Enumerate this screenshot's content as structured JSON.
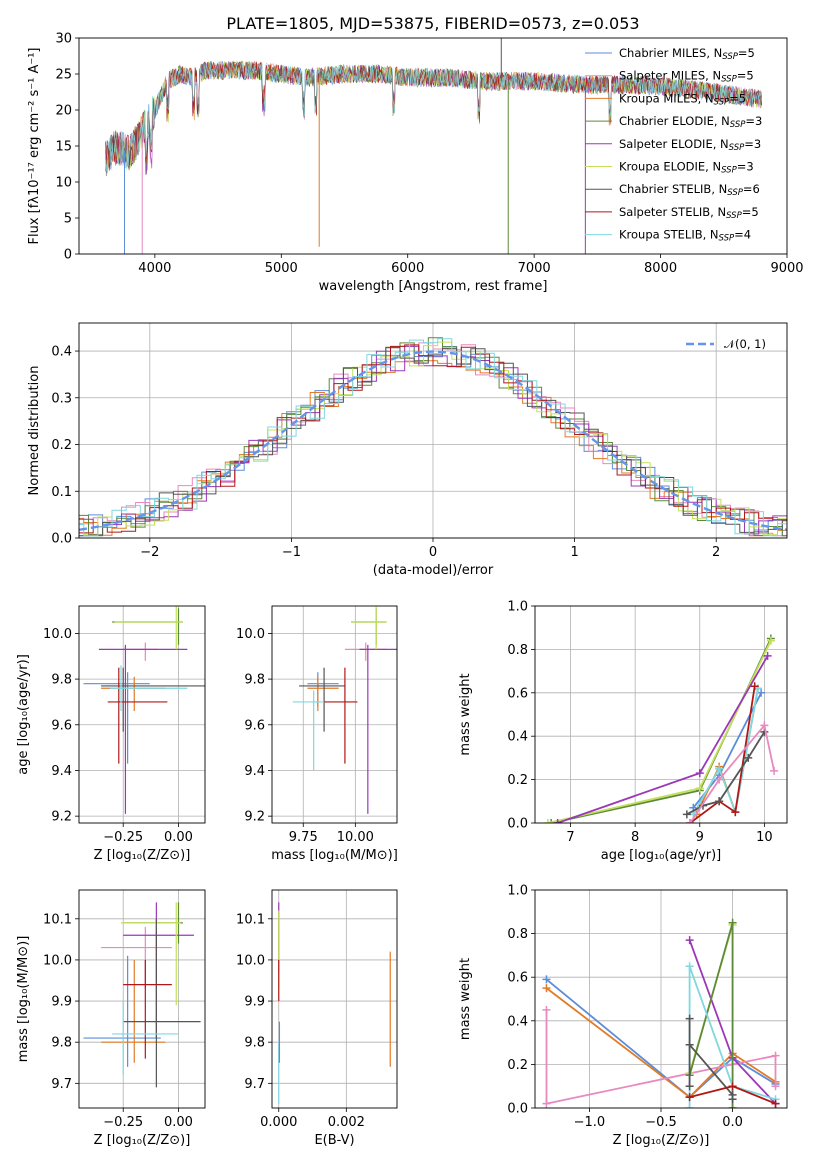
{
  "figure_title": "PLATE=1805, MJD=53875, FIBERID=0573, z=0.053",
  "colors": {
    "chabrier_miles": "#5b8ddb",
    "salpeter_miles": "#e889bf",
    "kroupa_miles": "#e07b28",
    "chabrier_elodie": "#5c8a3a",
    "salpeter_elodie": "#9a38b8",
    "kroupa_elodie": "#c4e05a",
    "chabrier_stelib": "#555555",
    "salpeter_stelib": "#b01818",
    "kroupa_stelib": "#7fd8e0",
    "gauss": "#6495ed"
  },
  "chart_data": [
    {
      "id": "spectrum",
      "type": "line",
      "title": "PLATE=1805, MJD=53875, FIBERID=0573, z=0.053",
      "xlabel": "wavelength [Angstrom, rest frame]",
      "ylabel": "Flux [f$_\\lambda$10$^{-17}$ erg cm$^{-2}$ s$^{-1}$ A$^{-1}$]",
      "xlim": [
        3400,
        9000
      ],
      "ylim": [
        0,
        30
      ],
      "xticks": [
        "4000",
        "5000",
        "6000",
        "7000",
        "8000",
        "9000"
      ],
      "yticks": [
        "0",
        "5",
        "10",
        "15",
        "20",
        "25",
        "30"
      ],
      "legend_position": "upper-right",
      "legend": [
        {
          "label": "Chabrier MILES, N",
          "sub": "SSP",
          "tail": "=5"
        },
        {
          "label": "Salpeter MILES, N",
          "sub": "SSP",
          "tail": "=5"
        },
        {
          "label": "Kroupa MILES, N",
          "sub": "SSP",
          "tail": "=5"
        },
        {
          "label": "Chabrier ELODIE, N",
          "sub": "SSP",
          "tail": "=3"
        },
        {
          "label": "Salpeter ELODIE, N",
          "sub": "SSP",
          "tail": "=3"
        },
        {
          "label": "Kroupa ELODIE, N",
          "sub": "SSP",
          "tail": "=3"
        },
        {
          "label": "Chabrier STELIB, N",
          "sub": "SSP",
          "tail": "=6"
        },
        {
          "label": "Salpeter STELIB, N",
          "sub": "SSP",
          "tail": "=5"
        },
        {
          "label": "Kroupa STELIB, N",
          "sub": "SSP",
          "tail": "=4"
        }
      ],
      "continuum": {
        "x": [
          3600,
          3700,
          3800,
          3900,
          4000,
          4100,
          4200,
          4300,
          4400,
          4600,
          4800,
          5000,
          5200,
          5500,
          5800,
          6000,
          6300,
          6600,
          7000,
          7400,
          7800,
          8200,
          8600,
          8800
        ],
        "y": [
          13,
          15,
          14,
          17,
          20,
          24,
          25,
          24.5,
          25.5,
          25.5,
          25.5,
          25,
          24.5,
          25,
          25,
          24.5,
          24.5,
          24,
          24,
          23.5,
          23.5,
          23,
          22,
          21.5
        ]
      }
    },
    {
      "id": "residuals",
      "type": "histogram",
      "xlabel": "(data-model)/error",
      "ylabel": "Normed distribution",
      "xlim": [
        -2.5,
        2.5
      ],
      "ylim": [
        0,
        0.46
      ],
      "xticks": [
        "−2",
        "−1",
        "0",
        "1",
        "2"
      ],
      "yticks": [
        "0.0",
        "0.1",
        "0.2",
        "0.3",
        "0.4"
      ],
      "legend": [
        "$\\mathcal{N}(0,1)$"
      ],
      "legend_position": "upper-right",
      "gauss_mu": 0,
      "gauss_sigma": 1
    },
    {
      "id": "age-vs-Z",
      "type": "errorbar",
      "xlabel": "Z [log$_{10}$($Z/Z_\\odot$)]",
      "ylabel": "age  [log$_{10}$($age/yr$)]",
      "xlim": [
        -0.45,
        0.12
      ],
      "ylim": [
        9.17,
        10.12
      ],
      "xticks": [
        -0.25,
        0.0
      ],
      "xtick_labels": [
        "−0.25",
        "0.00"
      ],
      "yticks": [
        9.2,
        9.4,
        9.6,
        9.8,
        10.0
      ],
      "ytick_labels": [
        "9.2",
        "9.4",
        "9.6",
        "9.8",
        "10.0"
      ],
      "points": [
        {
          "series": "chabrier_miles",
          "x": -0.23,
          "y": 9.78,
          "xerr": [
            0.2,
            0.1
          ],
          "yerr": [
            0.35,
            0.05
          ]
        },
        {
          "series": "salpeter_miles",
          "x": -0.15,
          "y": 9.93,
          "xerr": [
            0.1,
            0.06
          ],
          "yerr": [
            0.05,
            0.03
          ]
        },
        {
          "series": "kroupa_miles",
          "x": -0.2,
          "y": 9.76,
          "xerr": [
            0.15,
            0.14
          ],
          "yerr": [
            0.1,
            0.05
          ]
        },
        {
          "series": "chabrier_elodie",
          "x": 0.0,
          "y": 10.05,
          "xerr": [
            0.3,
            0.02
          ],
          "yerr": [
            0.1,
            0.06
          ]
        },
        {
          "series": "salpeter_elodie",
          "x": -0.24,
          "y": 9.93,
          "xerr": [
            0.12,
            0.28
          ],
          "yerr": [
            0.72,
            0.02
          ]
        },
        {
          "series": "kroupa_elodie",
          "x": -0.01,
          "y": 10.05,
          "xerr": [
            0.28,
            0.03
          ],
          "yerr": [
            0.12,
            0.07
          ]
        },
        {
          "series": "chabrier_stelib",
          "x": -0.25,
          "y": 9.77,
          "xerr": [
            0.1,
            0.38
          ],
          "yerr": [
            0.2,
            0.08
          ]
        },
        {
          "series": "salpeter_stelib",
          "x": -0.27,
          "y": 9.7,
          "xerr": [
            0.05,
            0.22
          ],
          "yerr": [
            0.27,
            0.15
          ]
        },
        {
          "series": "kroupa_stelib",
          "x": -0.26,
          "y": 9.76,
          "xerr": [
            0.05,
            0.3
          ],
          "yerr": [
            0.1,
            0.1
          ]
        }
      ]
    },
    {
      "id": "age-vs-mass",
      "type": "errorbar",
      "xlabel": "mass [log$_{10}$($M/M_\\odot$)]",
      "xlim": [
        9.6,
        10.2
      ],
      "ylim": [
        9.17,
        10.12
      ],
      "xticks": [
        9.75,
        10.0
      ],
      "xtick_labels": [
        "9.75",
        "10.00"
      ],
      "yticks": [
        9.2,
        9.4,
        9.6,
        9.8,
        10.0
      ],
      "ytick_labels": [
        "9.2",
        "9.4",
        "9.6",
        "9.8",
        "10.0"
      ],
      "points": [
        {
          "series": "chabrier_miles",
          "x": 9.82,
          "y": 9.78,
          "xerr": [
            0.05,
            0.1
          ],
          "yerr": [
            0.1,
            0.05
          ]
        },
        {
          "series": "salpeter_miles",
          "x": 10.05,
          "y": 9.93,
          "xerr": [
            0.1,
            0.1
          ],
          "yerr": [
            0.05,
            0.03
          ]
        },
        {
          "series": "kroupa_miles",
          "x": 9.82,
          "y": 9.76,
          "xerr": [
            0.05,
            0.1
          ],
          "yerr": [
            0.1,
            0.05
          ]
        },
        {
          "series": "chabrier_elodie",
          "x": 10.1,
          "y": 10.05,
          "xerr": [
            0.12,
            0.05
          ],
          "yerr": [
            0.1,
            0.06
          ]
        },
        {
          "series": "salpeter_elodie",
          "x": 10.06,
          "y": 9.93,
          "xerr": [
            0.04,
            0.15
          ],
          "yerr": [
            0.72,
            0.02
          ]
        },
        {
          "series": "kroupa_elodie",
          "x": 10.1,
          "y": 10.05,
          "xerr": [
            0.12,
            0.05
          ],
          "yerr": [
            0.12,
            0.07
          ]
        },
        {
          "series": "chabrier_stelib",
          "x": 9.85,
          "y": 9.77,
          "xerr": [
            0.12,
            0.1
          ],
          "yerr": [
            0.2,
            0.08
          ]
        },
        {
          "series": "salpeter_stelib",
          "x": 9.95,
          "y": 9.7,
          "xerr": [
            0.1,
            0.06
          ],
          "yerr": [
            0.27,
            0.15
          ]
        },
        {
          "series": "kroupa_stelib",
          "x": 9.8,
          "y": 9.7,
          "xerr": [
            0.1,
            0.05
          ],
          "yerr": [
            0.3,
            0.05
          ]
        }
      ]
    },
    {
      "id": "weight-vs-age",
      "type": "line",
      "xlabel": "age  [log$_{10}$($age/yr$)]",
      "ylabel": "mass weight",
      "xlim": [
        6.45,
        10.35
      ],
      "ylim": [
        0,
        1
      ],
      "xticks": [
        7,
        8,
        9,
        10
      ],
      "xtick_labels": [
        "7",
        "8",
        "9",
        "10"
      ],
      "yticks": [
        0,
        0.2,
        0.4,
        0.6,
        0.8,
        1.0
      ],
      "ytick_labels": [
        "0.0",
        "0.2",
        "0.4",
        "0.6",
        "0.8",
        "1.0"
      ],
      "series": [
        {
          "key": "chabrier_elodie",
          "x": [
            6.7,
            9.0,
            10.1
          ],
          "y": [
            0.0,
            0.15,
            0.85
          ]
        },
        {
          "key": "kroupa_elodie",
          "x": [
            6.65,
            9.0,
            10.1
          ],
          "y": [
            0.0,
            0.16,
            0.84
          ]
        },
        {
          "key": "salpeter_elodie",
          "x": [
            6.8,
            9.0,
            10.05
          ],
          "y": [
            0.0,
            0.23,
            0.77
          ]
        },
        {
          "key": "chabrier_miles",
          "x": [
            8.9,
            9.3,
            9.95
          ],
          "y": [
            0.07,
            0.22,
            0.6
          ]
        },
        {
          "key": "kroupa_miles",
          "x": [
            8.95,
            9.3,
            9.55,
            9.9
          ],
          "y": [
            0.04,
            0.26,
            0.05,
            0.62
          ]
        },
        {
          "key": "kroupa_stelib",
          "x": [
            8.9,
            9.3,
            9.55,
            9.9
          ],
          "y": [
            0.04,
            0.25,
            0.05,
            0.62
          ]
        },
        {
          "key": "salpeter_stelib",
          "x": [
            8.85,
            9.3,
            9.55,
            9.85
          ],
          "y": [
            0.0,
            0.1,
            0.05,
            0.63
          ]
        },
        {
          "key": "chabrier_stelib",
          "x": [
            8.8,
            9.05,
            9.3,
            9.75,
            10.0
          ],
          "y": [
            0.04,
            0.08,
            0.1,
            0.3,
            0.42
          ]
        },
        {
          "key": "salpeter_miles",
          "x": [
            8.85,
            9.3,
            10.0,
            10.15
          ],
          "y": [
            0.0,
            0.2,
            0.45,
            0.24
          ]
        }
      ]
    },
    {
      "id": "mass-vs-Z",
      "type": "errorbar",
      "xlabel": "Z [log$_{10}$($Z/Z_\\odot$)]",
      "ylabel": "mass [log$_{10}$($M/M_\\odot$)]",
      "xlim": [
        -0.45,
        0.12
      ],
      "ylim": [
        9.64,
        10.17
      ],
      "xticks": [
        -0.25,
        0.0
      ],
      "xtick_labels": [
        "−0.25",
        "0.00"
      ],
      "yticks": [
        9.7,
        9.8,
        9.9,
        10.0,
        10.1
      ],
      "ytick_labels": [
        "9.7",
        "9.8",
        "9.9",
        "10.0",
        "10.1"
      ],
      "points": [
        {
          "series": "chabrier_miles",
          "x": -0.23,
          "y": 9.81,
          "xerr": [
            0.2,
            0.15
          ],
          "yerr": [
            0.07,
            0.2
          ]
        },
        {
          "series": "salpeter_miles",
          "x": -0.15,
          "y": 10.03,
          "xerr": [
            0.2,
            0.12
          ],
          "yerr": [
            0.1,
            0.05
          ]
        },
        {
          "series": "kroupa_miles",
          "x": -0.2,
          "y": 9.8,
          "xerr": [
            0.15,
            0.14
          ],
          "yerr": [
            0.05,
            0.2
          ]
        },
        {
          "series": "chabrier_elodie",
          "x": 0.0,
          "y": 10.09,
          "xerr": [
            0.25,
            0.02
          ],
          "yerr": [
            0.05,
            0.05
          ]
        },
        {
          "series": "salpeter_elodie",
          "x": -0.1,
          "y": 10.06,
          "xerr": [
            0.15,
            0.17
          ],
          "yerr": [
            0.25,
            0.08
          ]
        },
        {
          "series": "kroupa_elodie",
          "x": -0.01,
          "y": 10.09,
          "xerr": [
            0.25,
            0.02
          ],
          "yerr": [
            0.2,
            0.05
          ]
        },
        {
          "series": "chabrier_stelib",
          "x": -0.1,
          "y": 9.85,
          "xerr": [
            0.15,
            0.2
          ],
          "yerr": [
            0.16,
            0.25
          ]
        },
        {
          "series": "salpeter_stelib",
          "x": -0.15,
          "y": 9.94,
          "xerr": [
            0.1,
            0.12
          ],
          "yerr": [
            0.18,
            0.06
          ]
        },
        {
          "series": "kroupa_stelib",
          "x": -0.25,
          "y": 9.82,
          "xerr": [
            0.05,
            0.25
          ],
          "yerr": [
            0.1,
            0.08
          ]
        }
      ]
    },
    {
      "id": "mass-vs-EBV",
      "type": "errorbar",
      "xlabel": "E(B-V)",
      "xlim": [
        -0.0002,
        0.0035
      ],
      "ylim": [
        9.64,
        10.17
      ],
      "xticks": [
        0.0,
        0.002
      ],
      "xtick_labels": [
        "0.000",
        "0.002"
      ],
      "yticks": [
        9.7,
        9.8,
        9.9,
        10.0,
        10.1
      ],
      "ytick_labels": [
        "9.7",
        "9.8",
        "9.9",
        "10.0",
        "10.1"
      ],
      "points": [
        {
          "series": "salpeter_elodie",
          "x": 0.0,
          "y": 10.06,
          "xerr": [
            0,
            0
          ],
          "yerr": [
            0.09,
            0.08
          ]
        },
        {
          "series": "kroupa_elodie",
          "x": 0.0,
          "y": 10.05,
          "xerr": [
            0,
            0
          ],
          "yerr": [
            0.12,
            0.07
          ]
        },
        {
          "series": "salpeter_stelib",
          "x": 0.0,
          "y": 9.94,
          "xerr": [
            0,
            0
          ],
          "yerr": [
            0.04,
            0.06
          ]
        },
        {
          "series": "kroupa_stelib",
          "x": 0.0,
          "y": 9.75,
          "xerr": [
            0,
            0
          ],
          "yerr": [
            0.1,
            0.05
          ]
        },
        {
          "series": "chabrier_miles",
          "x": 2e-05,
          "y": 9.8,
          "xerr": [
            0,
            0
          ],
          "yerr": [
            0.05,
            0.05
          ]
        },
        {
          "series": "kroupa_miles",
          "x": 0.0033,
          "y": 9.88,
          "xerr": [
            0,
            0
          ],
          "yerr": [
            0.14,
            0.14
          ]
        }
      ]
    },
    {
      "id": "weight-vs-Z",
      "type": "line",
      "xlabel": "Z [log$_{10}$($Z/Z_\\odot$)]",
      "ylabel": "mass weight",
      "xlim": [
        -1.38,
        0.38
      ],
      "ylim": [
        0,
        1
      ],
      "xticks": [
        -1.0,
        -0.5,
        0.0
      ],
      "xtick_labels": [
        "−1.0",
        "−0.5",
        "0.0"
      ],
      "yticks": [
        0,
        0.2,
        0.4,
        0.6,
        0.8,
        1.0
      ],
      "ytick_labels": [
        "0.0",
        "0.2",
        "0.4",
        "0.6",
        "0.8",
        "1.0"
      ],
      "series": [
        {
          "key": "chabrier_miles",
          "x": [
            -1.3,
            -0.3,
            0.0,
            0.3
          ],
          "y": [
            0.59,
            0.05,
            0.23,
            0.11
          ]
        },
        {
          "key": "kroupa_miles",
          "x": [
            -1.3,
            -0.3,
            0.0,
            0.3
          ],
          "y": [
            0.55,
            0.05,
            0.25,
            0.12
          ]
        },
        {
          "key": "salpeter_miles",
          "x": [
            -1.3,
            -1.3,
            0.0,
            0.3,
            0.3
          ],
          "y": [
            0.45,
            0.02,
            0.2,
            0.24,
            0.1
          ]
        },
        {
          "key": "salpeter_elodie",
          "x": [
            -0.3,
            0.0,
            0.3
          ],
          "y": [
            0.77,
            0.23,
            0.02
          ]
        },
        {
          "key": "kroupa_elodie",
          "x": [
            -0.3,
            0.0,
            0.0
          ],
          "y": [
            0.16,
            0.84,
            0.0
          ]
        },
        {
          "key": "chabrier_elodie",
          "x": [
            -0.3,
            0.0,
            0.0
          ],
          "y": [
            0.15,
            0.85,
            0.0
          ]
        },
        {
          "key": "kroupa_stelib",
          "x": [
            -0.3,
            -0.3,
            0.0,
            0.3
          ],
          "y": [
            0.0,
            0.65,
            0.1,
            0.04
          ]
        },
        {
          "key": "chabrier_stelib",
          "x": [
            -0.3,
            -0.3,
            -0.3,
            0.0,
            0.0
          ],
          "y": [
            0.1,
            0.41,
            0.29,
            0.06,
            0.04
          ]
        },
        {
          "key": "salpeter_stelib",
          "x": [
            -0.3,
            0.0,
            0.3
          ],
          "y": [
            0.05,
            0.1,
            0.02
          ]
        }
      ]
    }
  ]
}
